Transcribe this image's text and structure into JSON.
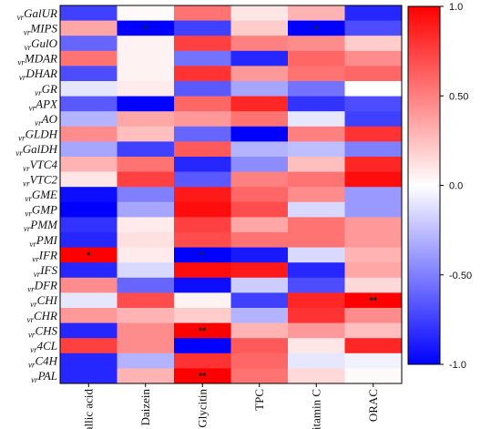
{
  "chart_data": {
    "type": "heatmap",
    "row_prefix": "vr",
    "rows": [
      "GalUR",
      "MIPS",
      "GulO",
      "MDAR",
      "DHAR",
      "GR",
      "APX",
      "AO",
      "GLDH",
      "GalDH",
      "VTC4",
      "VTC2",
      "GME",
      "GMP",
      "PMM",
      "PMI",
      "IFR",
      "IFS",
      "DFR",
      "CHI",
      "CHR",
      "CHS",
      "4CL",
      "C4H",
      "PAL"
    ],
    "columns": [
      "Gallic acid",
      "Daizein",
      "Glycitin",
      "TPC",
      "Vitamin C",
      "ORAC"
    ],
    "values": [
      [
        -0.75,
        0.02,
        0.55,
        0.1,
        0.3,
        -0.85
      ],
      [
        0.35,
        -1.0,
        -0.75,
        0.2,
        -1.0,
        -0.7
      ],
      [
        -0.6,
        0.05,
        0.75,
        0.5,
        0.45,
        0.2
      ],
      [
        0.55,
        0.05,
        -0.55,
        -0.85,
        0.6,
        0.45
      ],
      [
        -0.7,
        0.05,
        0.8,
        0.4,
        0.55,
        0.6
      ],
      [
        -0.1,
        0.08,
        -0.65,
        -0.35,
        -0.55,
        0.0
      ],
      [
        -0.65,
        -1.0,
        0.6,
        0.85,
        -0.8,
        -0.7
      ],
      [
        -0.3,
        0.35,
        0.4,
        0.55,
        -0.1,
        -0.75
      ],
      [
        0.45,
        0.25,
        -0.6,
        -1.0,
        0.5,
        0.8
      ],
      [
        -0.35,
        -0.75,
        0.65,
        -0.3,
        -0.25,
        -0.5
      ],
      [
        0.3,
        0.55,
        -0.85,
        -0.45,
        0.25,
        0.85
      ],
      [
        0.1,
        0.75,
        -0.65,
        0.5,
        0.55,
        0.95
      ],
      [
        -0.95,
        -0.5,
        0.9,
        0.6,
        0.45,
        -0.4
      ],
      [
        -1.0,
        -0.35,
        0.95,
        0.7,
        -0.15,
        -0.4
      ],
      [
        -0.8,
        0.08,
        0.75,
        0.35,
        0.55,
        0.4
      ],
      [
        -0.85,
        0.12,
        0.7,
        0.55,
        0.55,
        0.4
      ],
      [
        1.0,
        0.08,
        -1.0,
        -0.9,
        -0.15,
        0.3
      ],
      [
        -0.85,
        -0.15,
        0.95,
        0.9,
        -0.85,
        0.35
      ],
      [
        0.45,
        -0.6,
        -0.95,
        -0.2,
        -0.7,
        0.15
      ],
      [
        -0.1,
        0.7,
        0.05,
        -0.75,
        0.85,
        1.0
      ],
      [
        0.4,
        0.3,
        0.2,
        -0.3,
        0.8,
        0.45
      ],
      [
        -0.85,
        0.45,
        1.0,
        0.3,
        0.4,
        0.25
      ],
      [
        0.75,
        0.45,
        -1.0,
        0.65,
        0.1,
        0.85
      ],
      [
        -0.85,
        -0.3,
        0.8,
        0.6,
        -0.1,
        -0.05
      ],
      [
        -0.85,
        0.3,
        1.0,
        0.55,
        0.15,
        0.02
      ]
    ],
    "annotations": [
      {
        "row": "MIPS",
        "column": "Daizein",
        "text": "*"
      },
      {
        "row": "MIPS",
        "column": "Vitamin C",
        "text": "*"
      },
      {
        "row": "IFR",
        "column": "Gallic acid",
        "text": "*"
      },
      {
        "row": "IFR",
        "column": "Glycitin",
        "text": "*"
      },
      {
        "row": "CHI",
        "column": "ORAC",
        "text": "**"
      },
      {
        "row": "CHS",
        "column": "Glycitin",
        "text": "**"
      },
      {
        "row": "PAL",
        "column": "Glycitin",
        "text": "**"
      }
    ],
    "colorbar": {
      "min": -1.0,
      "max": 1.0,
      "ticks": [
        1.0,
        0.5,
        0.0,
        -0.5,
        -1.0
      ],
      "tick_labels": [
        "1.0",
        "0.50",
        "0.0",
        "-0.50",
        "-1.0"
      ],
      "colors": {
        "negative": "#0000ff",
        "zero": "#ffffff",
        "positive": "#ff0000"
      }
    }
  }
}
